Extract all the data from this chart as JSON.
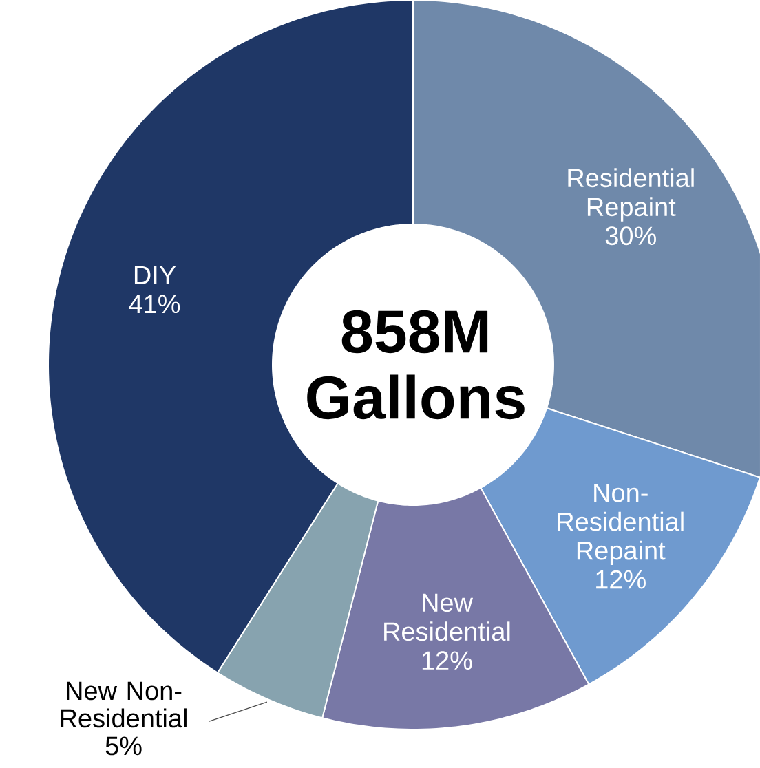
{
  "chart_data": {
    "type": "donut",
    "categories": [
      "Residential Repaint",
      "Non-Residential Repaint",
      "New Residential",
      "New Non-Residential",
      "DIY"
    ],
    "values": [
      30,
      12,
      12,
      5,
      41
    ],
    "value_labels": [
      "30%",
      "12%",
      "12%",
      "5%",
      "41%"
    ],
    "colors": [
      "#6f89aa",
      "#6f9acf",
      "#7878a6",
      "#87a3af",
      "#1f3766"
    ],
    "annotations": [
      "858M Gallons"
    ]
  }
}
